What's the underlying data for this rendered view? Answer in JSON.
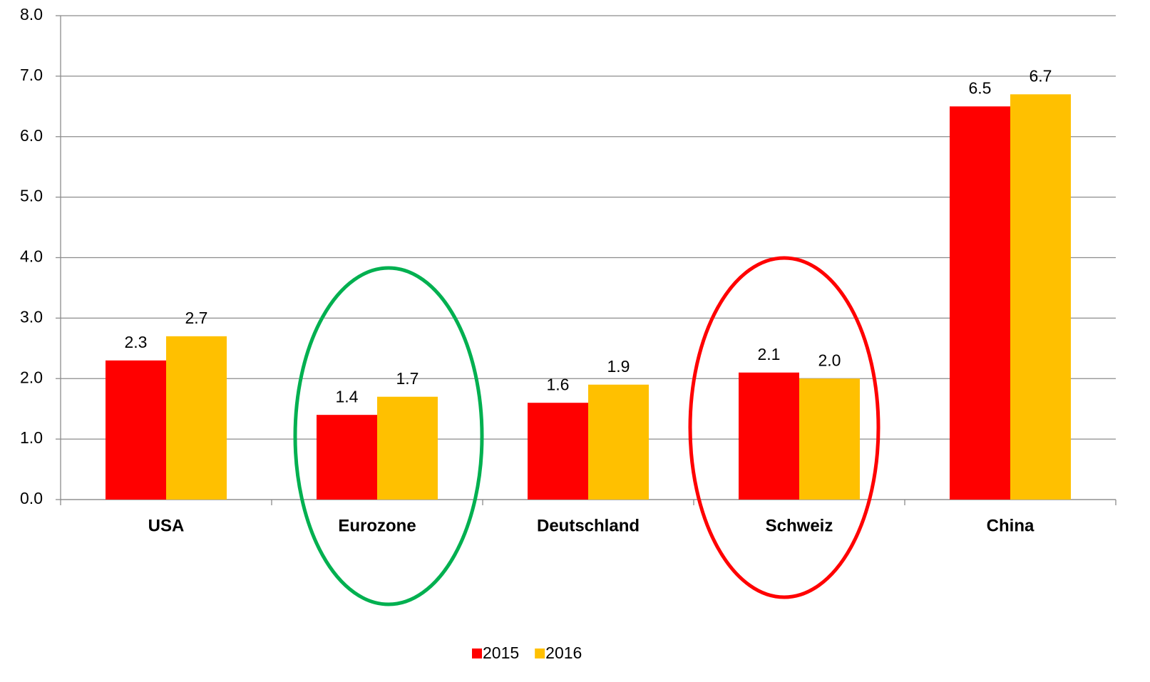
{
  "chart_data": {
    "type": "bar",
    "categories": [
      "USA",
      "Eurozone",
      "Deutschland",
      "Schweiz",
      "China"
    ],
    "series": [
      {
        "name": "2015",
        "color": "#ff0000",
        "values": [
          2.3,
          1.4,
          1.6,
          2.1,
          6.5
        ],
        "value_labels": [
          "2.3",
          "1.4",
          "1.6",
          "2.1",
          "6.5"
        ]
      },
      {
        "name": "2016",
        "color": "#ffc000",
        "values": [
          2.7,
          1.7,
          1.9,
          2.0,
          6.7
        ],
        "value_labels": [
          "2.7",
          "1.7",
          "1.9",
          "2.0",
          "6.7"
        ]
      }
    ],
    "ylim": [
      0,
      8
    ],
    "yticks": [
      {
        "value": 0,
        "label": "0.0"
      },
      {
        "value": 1,
        "label": "1.0"
      },
      {
        "value": 2,
        "label": "2.0"
      },
      {
        "value": 3,
        "label": "3.0"
      },
      {
        "value": 4,
        "label": "4.0"
      },
      {
        "value": 5,
        "label": "5.0"
      },
      {
        "value": 6,
        "label": "6.0"
      },
      {
        "value": 7,
        "label": "7.0"
      },
      {
        "value": 8,
        "label": "8.0"
      }
    ],
    "grid": true,
    "legend": "bottom"
  }
}
